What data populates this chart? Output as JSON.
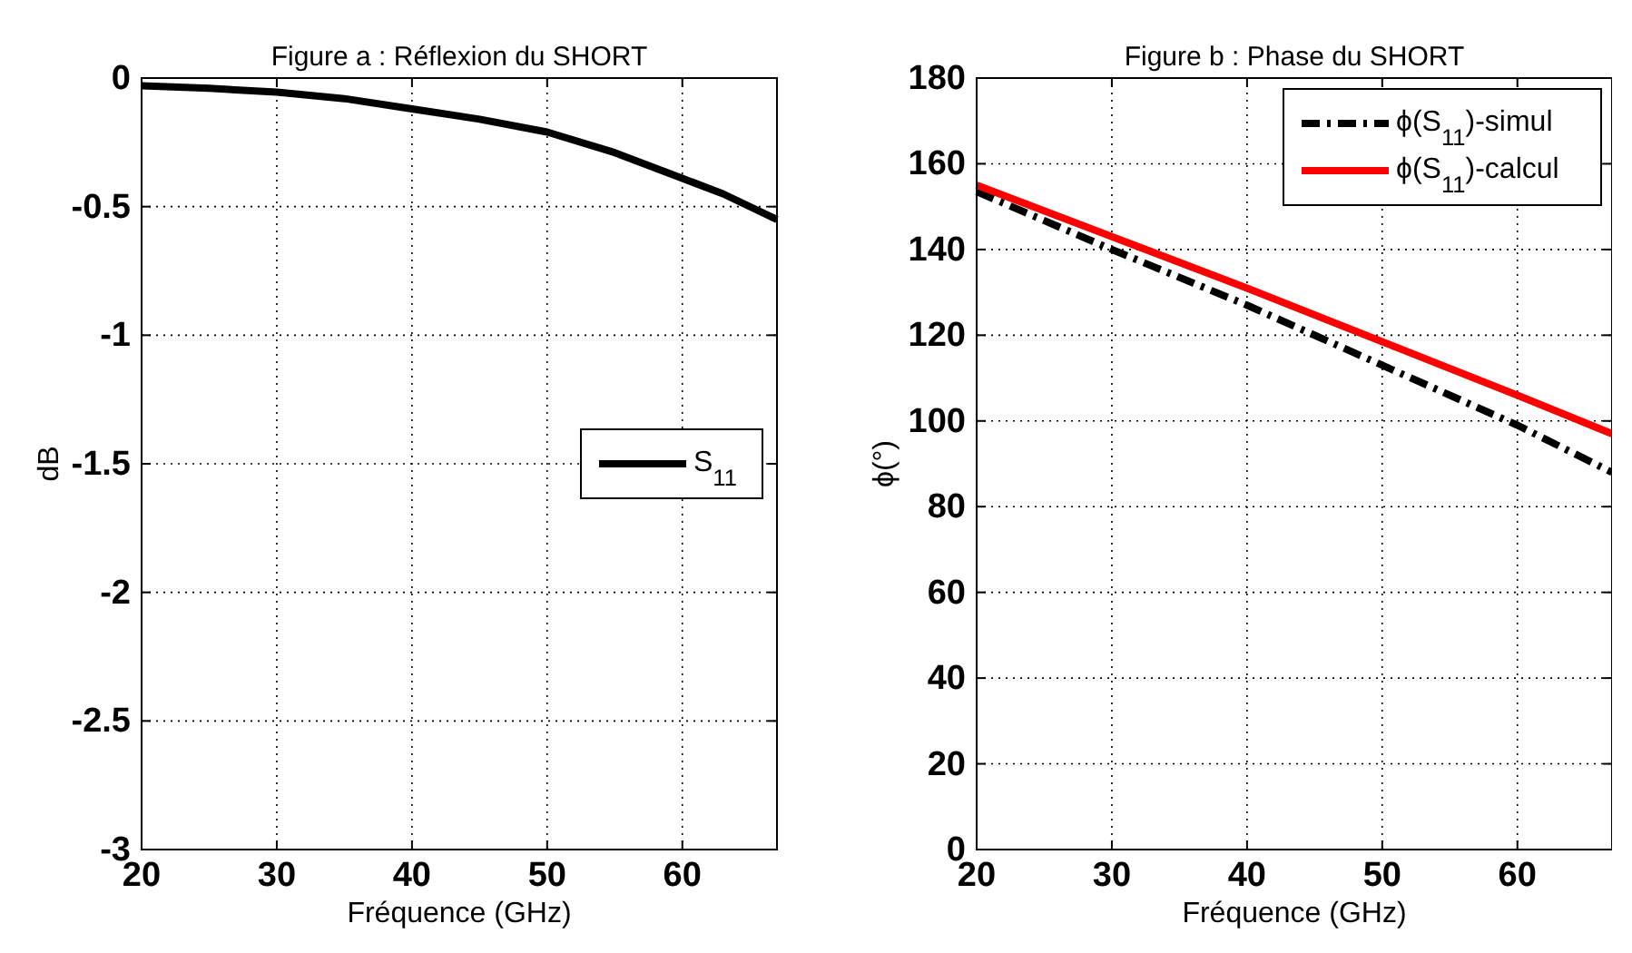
{
  "chart_data": [
    {
      "type": "line",
      "title": "Figure a : Réflexion du SHORT",
      "xlabel": "Fréquence (GHz)",
      "ylabel": "dB",
      "x": [
        20,
        25,
        30,
        35,
        40,
        45,
        50,
        55,
        60,
        63,
        67
      ],
      "series": [
        {
          "name": "S$_{11}$",
          "color": "#000000",
          "line_style": "solid",
          "values": [
            -0.03,
            -0.04,
            -0.055,
            -0.08,
            -0.12,
            -0.16,
            -0.21,
            -0.29,
            -0.39,
            -0.45,
            -0.55
          ]
        }
      ],
      "xlim": [
        20,
        67
      ],
      "xticks": [
        20,
        30,
        40,
        50,
        60
      ],
      "ylim": [
        -3,
        0
      ],
      "yticks": [
        -3,
        -2.5,
        -2,
        -1.5,
        -1,
        -0.5,
        0
      ],
      "grid": true,
      "legend": "right",
      "marker": "none"
    },
    {
      "type": "line",
      "title": "Figure b : Phase du SHORT",
      "xlabel": "Fréquence (GHz)",
      "ylabel": "ϕ(°)",
      "x": [
        20,
        30,
        40,
        50,
        60,
        67
      ],
      "series": [
        {
          "name": "ϕ(S$_{11}$)-simul",
          "color": "#000000",
          "line_style": "dashed",
          "values": [
            153.5,
            140,
            127,
            113,
            99,
            88
          ]
        },
        {
          "name": "ϕ(S$_{11}$)-calcul",
          "color": "#ff0000",
          "line_style": "solid",
          "values": [
            155,
            143,
            131,
            118.5,
            106,
            97
          ]
        }
      ],
      "xlim": [
        20,
        67
      ],
      "xticks": [
        20,
        30,
        40,
        50,
        60
      ],
      "ylim": [
        0,
        180
      ],
      "yticks": [
        0,
        20,
        40,
        60,
        80,
        100,
        120,
        140,
        160,
        180
      ],
      "grid": true,
      "legend": "top right",
      "marker": "none"
    }
  ]
}
